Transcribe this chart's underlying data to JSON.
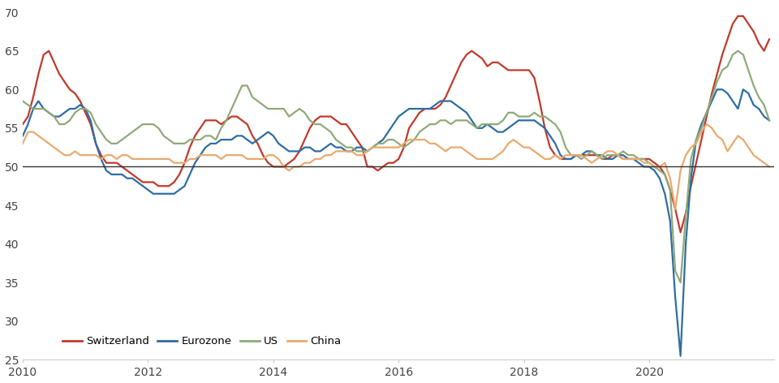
{
  "series": {
    "Switzerland": {
      "color": "#c0392b",
      "linewidth": 1.6,
      "data": [
        55.5,
        56.5,
        59.0,
        62.0,
        64.5,
        65.0,
        63.5,
        62.0,
        61.0,
        60.0,
        59.5,
        58.5,
        57.0,
        55.5,
        53.0,
        51.5,
        50.5,
        50.5,
        50.5,
        50.0,
        49.5,
        49.0,
        48.5,
        48.0,
        48.0,
        48.0,
        47.5,
        47.5,
        47.5,
        48.0,
        49.0,
        50.5,
        52.5,
        54.0,
        55.0,
        56.0,
        56.0,
        56.0,
        55.5,
        56.0,
        56.5,
        56.5,
        56.0,
        55.5,
        54.0,
        53.0,
        51.5,
        50.5,
        50.0,
        50.0,
        50.0,
        50.5,
        51.0,
        52.0,
        53.5,
        55.0,
        56.0,
        56.5,
        56.5,
        56.5,
        56.0,
        55.5,
        55.5,
        54.5,
        53.5,
        52.5,
        50.0,
        50.0,
        49.5,
        50.0,
        50.5,
        50.5,
        51.0,
        52.5,
        55.0,
        56.0,
        57.0,
        57.5,
        57.5,
        57.5,
        58.0,
        59.0,
        60.5,
        62.0,
        63.5,
        64.5,
        65.0,
        64.5,
        64.0,
        63.0,
        63.5,
        63.5,
        63.0,
        62.5,
        62.5,
        62.5,
        62.5,
        62.5,
        61.5,
        58.5,
        55.0,
        52.5,
        51.5,
        51.0,
        51.0,
        51.0,
        51.5,
        51.5,
        51.5,
        51.5,
        51.5,
        51.0,
        51.0,
        51.5,
        51.5,
        51.0,
        51.0,
        51.0,
        51.0,
        51.0,
        51.0,
        50.5,
        50.0,
        49.0,
        47.0,
        44.5,
        41.5,
        44.0,
        47.5,
        50.5,
        53.5,
        56.5,
        59.5,
        62.0,
        64.5,
        66.5,
        68.5,
        69.5,
        69.5,
        68.5,
        67.5,
        66.0,
        65.0,
        66.5
      ]
    },
    "Eurozone": {
      "color": "#2e6da4",
      "linewidth": 1.6,
      "data": [
        54.0,
        55.5,
        57.5,
        58.5,
        57.5,
        57.0,
        56.5,
        56.5,
        57.0,
        57.5,
        57.5,
        58.0,
        57.5,
        56.0,
        53.0,
        51.0,
        49.5,
        49.0,
        49.0,
        49.0,
        48.5,
        48.5,
        48.0,
        47.5,
        47.0,
        46.5,
        46.5,
        46.5,
        46.5,
        46.5,
        47.0,
        47.5,
        49.0,
        50.5,
        51.5,
        52.5,
        53.0,
        53.0,
        53.5,
        53.5,
        53.5,
        54.0,
        54.0,
        53.5,
        53.0,
        53.5,
        54.0,
        54.5,
        54.0,
        53.0,
        52.5,
        52.0,
        52.0,
        52.0,
        52.5,
        52.5,
        52.0,
        52.0,
        52.5,
        53.0,
        52.5,
        52.5,
        52.0,
        52.0,
        52.5,
        52.5,
        52.0,
        52.5,
        53.0,
        53.5,
        54.5,
        55.5,
        56.5,
        57.0,
        57.5,
        57.5,
        57.5,
        57.5,
        57.5,
        58.0,
        58.5,
        58.5,
        58.5,
        58.0,
        57.5,
        57.0,
        56.0,
        55.0,
        55.0,
        55.5,
        55.0,
        54.5,
        54.5,
        55.0,
        55.5,
        56.0,
        56.0,
        56.0,
        56.0,
        55.5,
        55.0,
        54.0,
        53.0,
        51.5,
        51.0,
        51.0,
        51.5,
        51.5,
        52.0,
        52.0,
        51.5,
        51.5,
        51.0,
        51.0,
        51.5,
        51.5,
        51.0,
        51.0,
        50.5,
        50.0,
        50.0,
        49.5,
        48.5,
        46.5,
        43.0,
        33.0,
        25.5,
        40.0,
        48.5,
        53.5,
        55.5,
        57.0,
        58.5,
        60.0,
        60.0,
        59.5,
        58.5,
        57.5,
        60.0,
        59.5,
        58.0,
        57.5,
        56.5,
        56.0
      ]
    },
    "US": {
      "color": "#8faa79",
      "linewidth": 1.6,
      "data": [
        58.5,
        58.0,
        57.5,
        57.5,
        57.5,
        57.0,
        56.5,
        55.5,
        55.5,
        56.0,
        57.0,
        57.5,
        57.5,
        57.0,
        55.5,
        54.5,
        53.5,
        53.0,
        53.0,
        53.5,
        54.0,
        54.5,
        55.0,
        55.5,
        55.5,
        55.5,
        55.0,
        54.0,
        53.5,
        53.0,
        53.0,
        53.0,
        53.5,
        53.5,
        53.5,
        54.0,
        54.0,
        53.5,
        55.0,
        56.0,
        57.5,
        59.0,
        60.5,
        60.5,
        59.0,
        58.5,
        58.0,
        57.5,
        57.5,
        57.5,
        57.5,
        56.5,
        57.0,
        57.5,
        57.0,
        56.0,
        55.5,
        55.5,
        55.0,
        54.5,
        53.5,
        53.0,
        52.5,
        52.5,
        52.0,
        52.0,
        52.0,
        52.5,
        53.0,
        53.0,
        53.5,
        53.5,
        53.0,
        52.5,
        53.0,
        53.5,
        54.5,
        55.0,
        55.5,
        55.5,
        56.0,
        56.0,
        55.5,
        56.0,
        56.0,
        56.0,
        55.5,
        55.0,
        55.5,
        55.5,
        55.5,
        55.5,
        56.0,
        57.0,
        57.0,
        56.5,
        56.5,
        56.5,
        57.0,
        56.5,
        56.5,
        56.0,
        55.5,
        54.5,
        52.5,
        51.5,
        51.5,
        51.0,
        51.5,
        52.0,
        51.5,
        51.0,
        51.5,
        51.5,
        51.5,
        52.0,
        51.5,
        51.5,
        51.0,
        51.0,
        50.5,
        50.0,
        49.5,
        49.0,
        47.0,
        36.5,
        35.0,
        43.5,
        51.0,
        53.5,
        55.0,
        57.0,
        59.0,
        61.0,
        62.5,
        63.0,
        64.5,
        65.0,
        64.5,
        62.5,
        60.5,
        59.0,
        58.0,
        56.0
      ]
    },
    "China": {
      "color": "#e8aa6e",
      "linewidth": 1.6,
      "data": [
        53.0,
        54.5,
        54.5,
        54.0,
        53.5,
        53.0,
        52.5,
        52.0,
        51.5,
        51.5,
        52.0,
        51.5,
        51.5,
        51.5,
        51.5,
        51.0,
        51.5,
        51.5,
        51.0,
        51.5,
        51.5,
        51.0,
        51.0,
        51.0,
        51.0,
        51.0,
        51.0,
        51.0,
        51.0,
        50.5,
        50.5,
        50.5,
        51.0,
        51.0,
        51.5,
        51.5,
        51.5,
        51.5,
        51.0,
        51.5,
        51.5,
        51.5,
        51.5,
        51.0,
        51.0,
        51.0,
        51.0,
        51.5,
        51.5,
        51.0,
        50.0,
        49.5,
        50.0,
        50.0,
        50.5,
        50.5,
        51.0,
        51.0,
        51.5,
        51.5,
        52.0,
        52.0,
        52.0,
        52.0,
        51.5,
        51.5,
        52.0,
        52.5,
        52.5,
        52.5,
        52.5,
        52.5,
        52.5,
        53.0,
        53.5,
        53.5,
        53.5,
        53.5,
        53.0,
        53.0,
        52.5,
        52.0,
        52.5,
        52.5,
        52.5,
        52.0,
        51.5,
        51.0,
        51.0,
        51.0,
        51.0,
        51.5,
        52.0,
        53.0,
        53.5,
        53.0,
        52.5,
        52.5,
        52.0,
        51.5,
        51.0,
        51.0,
        51.5,
        51.0,
        51.5,
        51.5,
        51.5,
        51.5,
        51.0,
        50.5,
        51.0,
        51.5,
        52.0,
        52.0,
        51.5,
        51.0,
        51.0,
        51.0,
        51.0,
        50.5,
        50.5,
        50.0,
        50.0,
        50.5,
        48.5,
        44.5,
        49.5,
        51.5,
        52.5,
        53.0,
        54.5,
        55.5,
        55.0,
        54.0,
        53.5,
        52.0,
        53.0,
        54.0,
        53.5,
        52.5,
        51.5,
        51.0,
        50.5,
        50.0
      ]
    }
  },
  "x_start": 2010.0,
  "x_step": 0.083333,
  "n_points": 144,
  "xlim": [
    2010.0,
    2022.0
  ],
  "ylim": [
    25,
    71
  ],
  "yticks": [
    25,
    30,
    35,
    40,
    45,
    50,
    55,
    60,
    65,
    70
  ],
  "xticks": [
    2010,
    2012,
    2014,
    2016,
    2018,
    2020
  ],
  "hline_y": 50,
  "hline_color": "#333333",
  "legend_labels": [
    "Switzerland",
    "Eurozone",
    "US",
    "China"
  ],
  "legend_colors": [
    "#c0392b",
    "#2e6da4",
    "#8faa79",
    "#e8aa6e"
  ],
  "background_color": "#ffffff"
}
